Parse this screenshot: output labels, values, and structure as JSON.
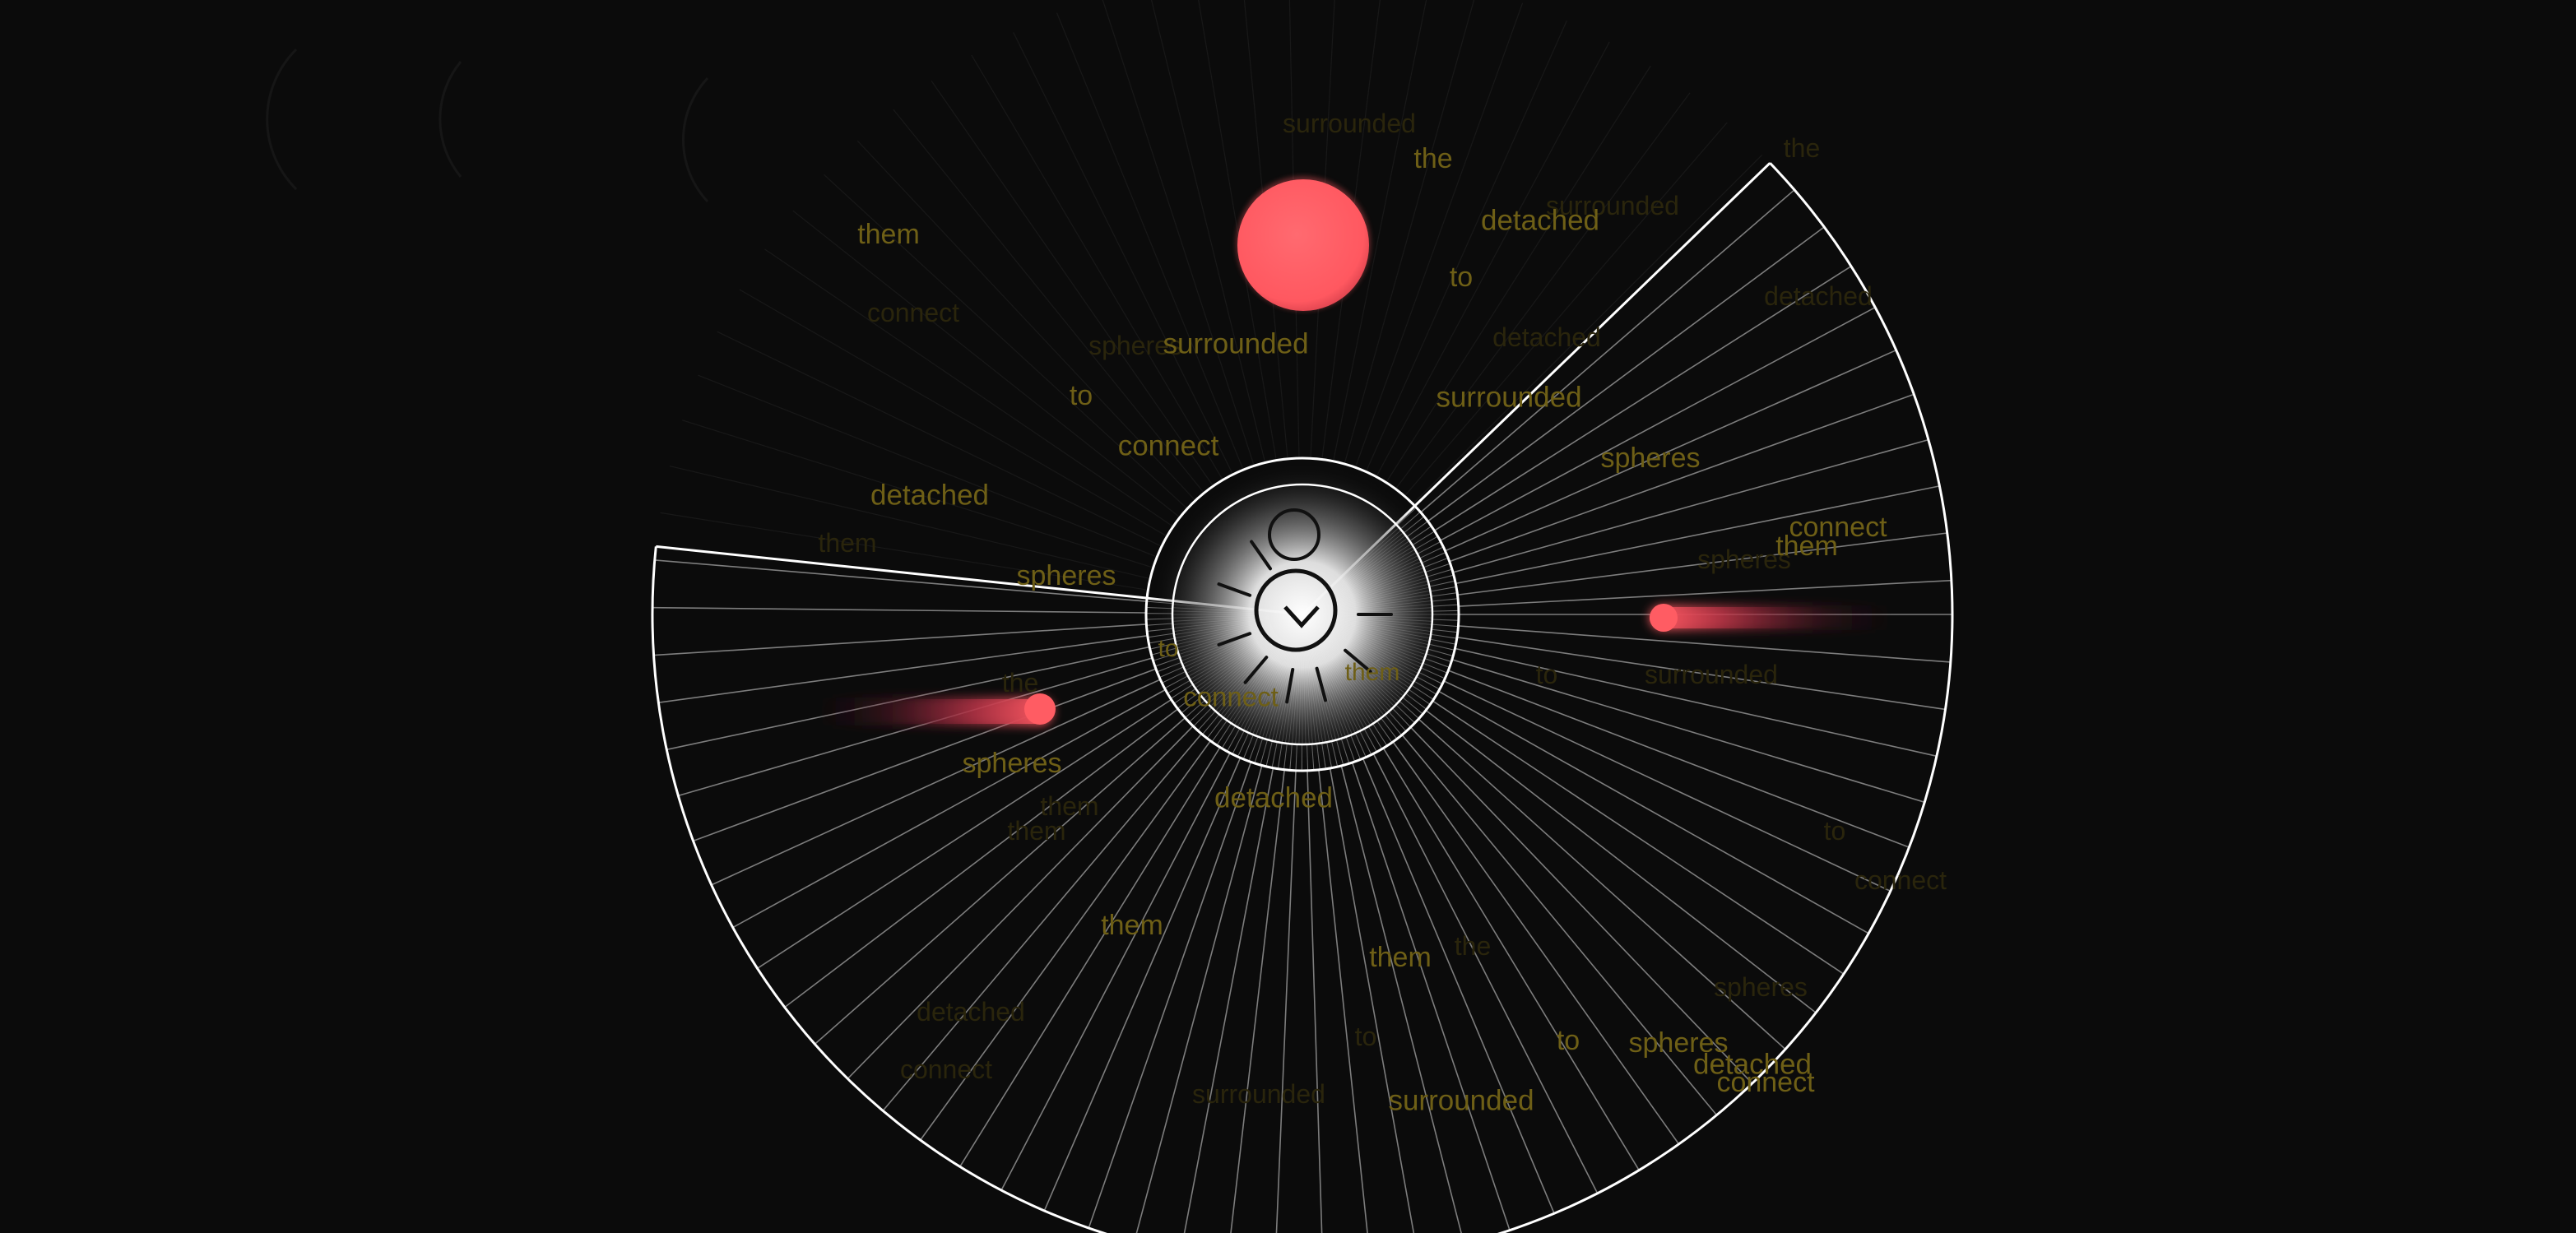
{
  "colors": {
    "background": "#0b0b0b",
    "ring_stroke": "#ffffff",
    "spoke_stroke": "#8a8a8a",
    "word_bright": "#6e5f16",
    "word_dim": "#2a250c",
    "orb": "#ff5c63",
    "hub_glow": "#ffffff",
    "hub_mark": "#111111"
  },
  "icons": {
    "hub_top": "circle-icon",
    "hub_center": "circle-icon",
    "hub_pointer": "chevron-down-icon"
  },
  "words": {
    "w1": "them",
    "w2": "the",
    "w3": "detached",
    "w4": "to",
    "w5": "surrounded",
    "w6": "to",
    "w7": "surrounded",
    "w8": "connect",
    "w9": "spheres",
    "w10": "detached",
    "w11": "connect",
    "w12": "them",
    "w13": "spheres",
    "w14": "to",
    "w15": "connect",
    "w16": "them",
    "w17": "spheres",
    "w18": "detached",
    "w19": "them",
    "w20": "them",
    "w21": "to",
    "w22": "spheres",
    "w23": "detached",
    "w24": "connect",
    "w25": "surrounded"
  },
  "faint_words": {
    "f1": "surrounded",
    "f2": "the",
    "f3": "connect",
    "f4": "detached",
    "f5": "them",
    "f6": "spheres",
    "f7": "to",
    "f8": "surrounded",
    "f9": "connect",
    "f10": "the",
    "f11": "them",
    "f12": "detached",
    "f13": "spheres",
    "f14": "to",
    "f15": "surrounded",
    "f16": "connect",
    "f17": "the",
    "f18": "them",
    "f19": "detached",
    "f20": "spheres",
    "f21": "to",
    "f22": "surrounded"
  }
}
